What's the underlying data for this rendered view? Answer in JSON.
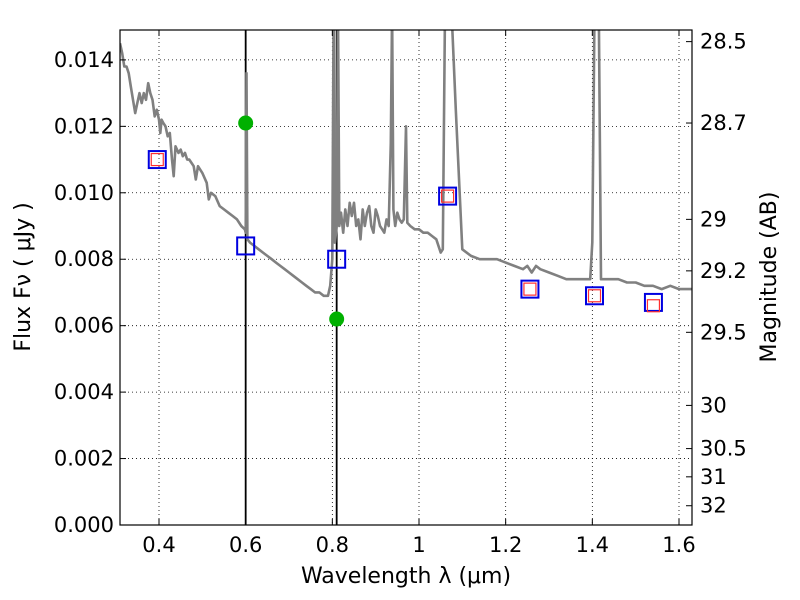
{
  "chart_data": {
    "type": "scatter",
    "xlabel": "Wavelength  λ (μm)",
    "ylabel": "Flux  Fν  ( μJy )",
    "ylabel_right": "Magnitude (AB)",
    "xlim": [
      0.31,
      1.63
    ],
    "ylim": [
      0.0,
      0.0149
    ],
    "grid": true,
    "x_ticks": [
      {
        "value": 0.4,
        "label": "0.4"
      },
      {
        "value": 0.6,
        "label": "0.6"
      },
      {
        "value": 0.8,
        "label": "0.8"
      },
      {
        "value": 1.0,
        "label": "1"
      },
      {
        "value": 1.2,
        "label": "1.2"
      },
      {
        "value": 1.4,
        "label": "1.4"
      },
      {
        "value": 1.6,
        "label": "1.6"
      }
    ],
    "y_ticks": [
      {
        "value": 0.0,
        "label": "0.000"
      },
      {
        "value": 0.002,
        "label": "0.002"
      },
      {
        "value": 0.004,
        "label": "0.004"
      },
      {
        "value": 0.006,
        "label": "0.006"
      },
      {
        "value": 0.008,
        "label": "0.008"
      },
      {
        "value": 0.01,
        "label": "0.010"
      },
      {
        "value": 0.012,
        "label": "0.012"
      },
      {
        "value": 0.014,
        "label": "0.014"
      }
    ],
    "right_ticks": [
      {
        "label": "28.5",
        "flux": 0.01455
      },
      {
        "label": "28.7",
        "flux": 0.0121
      },
      {
        "label": "29",
        "flux": 0.0092
      },
      {
        "label": "29.2",
        "flux": 0.00765
      },
      {
        "label": "29.5",
        "flux": 0.0058
      },
      {
        "label": "30",
        "flux": 0.0036
      },
      {
        "label": "30.5",
        "flux": 0.0023
      },
      {
        "label": "31",
        "flux": 0.00145
      },
      {
        "label": "32",
        "flux": 0.00058
      }
    ],
    "vertical_lines": [
      0.6,
      0.81
    ],
    "series": [
      {
        "kind": "line",
        "color": "#808080",
        "points": [
          [
            0.31,
            0.0145
          ],
          [
            0.315,
            0.0142
          ],
          [
            0.32,
            0.0138
          ],
          [
            0.325,
            0.0138
          ],
          [
            0.33,
            0.0136
          ],
          [
            0.335,
            0.0132
          ],
          [
            0.34,
            0.0128
          ],
          [
            0.345,
            0.0124
          ],
          [
            0.35,
            0.0127
          ],
          [
            0.355,
            0.013
          ],
          [
            0.36,
            0.0127
          ],
          [
            0.365,
            0.013
          ],
          [
            0.37,
            0.0128
          ],
          [
            0.375,
            0.0133
          ],
          [
            0.38,
            0.013
          ],
          [
            0.385,
            0.0128
          ],
          [
            0.39,
            0.0123
          ],
          [
            0.395,
            0.0125
          ],
          [
            0.4,
            0.0122
          ],
          [
            0.403,
            0.0118
          ],
          [
            0.406,
            0.0122
          ],
          [
            0.41,
            0.0121
          ],
          [
            0.415,
            0.012
          ],
          [
            0.42,
            0.0117
          ],
          [
            0.425,
            0.0118
          ],
          [
            0.43,
            0.011
          ],
          [
            0.434,
            0.0105
          ],
          [
            0.438,
            0.0114
          ],
          [
            0.445,
            0.0112
          ],
          [
            0.45,
            0.0113
          ],
          [
            0.455,
            0.0111
          ],
          [
            0.46,
            0.0112
          ],
          [
            0.465,
            0.011
          ],
          [
            0.47,
            0.011
          ],
          [
            0.475,
            0.0109
          ],
          [
            0.48,
            0.0108
          ],
          [
            0.485,
            0.0104
          ],
          [
            0.49,
            0.0108
          ],
          [
            0.5,
            0.0106
          ],
          [
            0.51,
            0.0103
          ],
          [
            0.515,
            0.0098
          ],
          [
            0.52,
            0.01
          ],
          [
            0.53,
            0.0099
          ],
          [
            0.54,
            0.0096
          ],
          [
            0.55,
            0.0095
          ],
          [
            0.56,
            0.0094
          ],
          [
            0.57,
            0.0093
          ],
          [
            0.58,
            0.0092
          ],
          [
            0.59,
            0.009
          ],
          [
            0.598,
            0.0089
          ],
          [
            0.6,
            0.0088
          ],
          [
            0.602,
            0.0136
          ],
          [
            0.604,
            0.0086
          ],
          [
            0.61,
            0.0085
          ],
          [
            0.62,
            0.0084
          ],
          [
            0.63,
            0.0083
          ],
          [
            0.64,
            0.0082
          ],
          [
            0.65,
            0.0081
          ],
          [
            0.66,
            0.008
          ],
          [
            0.67,
            0.0079
          ],
          [
            0.68,
            0.0078
          ],
          [
            0.69,
            0.0077
          ],
          [
            0.7,
            0.0076
          ],
          [
            0.71,
            0.0075
          ],
          [
            0.72,
            0.0074
          ],
          [
            0.73,
            0.0073
          ],
          [
            0.74,
            0.0072
          ],
          [
            0.75,
            0.0071
          ],
          [
            0.76,
            0.007
          ],
          [
            0.77,
            0.007
          ],
          [
            0.78,
            0.0069
          ],
          [
            0.79,
            0.0069
          ],
          [
            0.795,
            0.0072
          ],
          [
            0.8,
            0.008
          ],
          [
            0.803,
            0.0155
          ],
          [
            0.806,
            0.0085
          ],
          [
            0.81,
            0.009
          ],
          [
            0.813,
            0.0155
          ],
          [
            0.816,
            0.009
          ],
          [
            0.82,
            0.0094
          ],
          [
            0.825,
            0.0088
          ],
          [
            0.83,
            0.0095
          ],
          [
            0.835,
            0.009
          ],
          [
            0.84,
            0.0097
          ],
          [
            0.845,
            0.0093
          ],
          [
            0.85,
            0.0097
          ],
          [
            0.855,
            0.009
          ],
          [
            0.86,
            0.0092
          ],
          [
            0.865,
            0.0086
          ],
          [
            0.87,
            0.0095
          ],
          [
            0.875,
            0.009
          ],
          [
            0.88,
            0.0094
          ],
          [
            0.885,
            0.0096
          ],
          [
            0.89,
            0.009
          ],
          [
            0.895,
            0.0088
          ],
          [
            0.9,
            0.0095
          ],
          [
            0.905,
            0.0093
          ],
          [
            0.91,
            0.009
          ],
          [
            0.915,
            0.0089
          ],
          [
            0.92,
            0.0088
          ],
          [
            0.925,
            0.0092
          ],
          [
            0.93,
            0.009
          ],
          [
            0.935,
            0.0115
          ],
          [
            0.938,
            0.0155
          ],
          [
            0.941,
            0.0095
          ],
          [
            0.945,
            0.009
          ],
          [
            0.95,
            0.0094
          ],
          [
            0.955,
            0.0092
          ],
          [
            0.96,
            0.0091
          ],
          [
            0.965,
            0.0092
          ],
          [
            0.97,
            0.012
          ],
          [
            0.973,
            0.0091
          ],
          [
            0.98,
            0.009
          ],
          [
            0.99,
            0.0089
          ],
          [
            1.0,
            0.0089
          ],
          [
            1.01,
            0.0088
          ],
          [
            1.02,
            0.0088
          ],
          [
            1.03,
            0.0087
          ],
          [
            1.04,
            0.0086
          ],
          [
            1.05,
            0.0082
          ],
          [
            1.055,
            0.0083
          ],
          [
            1.06,
            0.0155
          ],
          [
            1.075,
            0.0155
          ],
          [
            1.085,
            0.0125
          ],
          [
            1.1,
            0.0083
          ],
          [
            1.12,
            0.0081
          ],
          [
            1.14,
            0.008
          ],
          [
            1.16,
            0.008
          ],
          [
            1.18,
            0.008
          ],
          [
            1.2,
            0.0079
          ],
          [
            1.22,
            0.0078
          ],
          [
            1.24,
            0.0077
          ],
          [
            1.25,
            0.0078
          ],
          [
            1.26,
            0.0076
          ],
          [
            1.27,
            0.0078
          ],
          [
            1.28,
            0.0077
          ],
          [
            1.3,
            0.0076
          ],
          [
            1.32,
            0.0075
          ],
          [
            1.34,
            0.0074
          ],
          [
            1.36,
            0.0074
          ],
          [
            1.38,
            0.0074
          ],
          [
            1.395,
            0.0074
          ],
          [
            1.4,
            0.0085
          ],
          [
            1.405,
            0.0155
          ],
          [
            1.415,
            0.0155
          ],
          [
            1.42,
            0.0074
          ],
          [
            1.44,
            0.0074
          ],
          [
            1.46,
            0.0074
          ],
          [
            1.48,
            0.0073
          ],
          [
            1.5,
            0.0073
          ],
          [
            1.52,
            0.0072
          ],
          [
            1.54,
            0.0072
          ],
          [
            1.56,
            0.0071
          ],
          [
            1.58,
            0.0072
          ],
          [
            1.6,
            0.0071
          ],
          [
            1.63,
            0.0071
          ]
        ]
      },
      {
        "kind": "marker",
        "marker": "circle",
        "color": "#00b000",
        "points": [
          [
            0.6,
            0.0121
          ],
          [
            0.81,
            0.0062
          ]
        ]
      },
      {
        "kind": "marker",
        "marker": "square-blue",
        "color": "#0000e0",
        "points": [
          [
            0.396,
            0.011
          ],
          [
            0.6,
            0.0084
          ],
          [
            0.81,
            0.008
          ],
          [
            1.066,
            0.0099
          ],
          [
            1.256,
            0.0071
          ],
          [
            1.405,
            0.0069
          ],
          [
            1.541,
            0.0067
          ]
        ]
      },
      {
        "kind": "marker",
        "marker": "square-red",
        "color": "#ff3030",
        "points": [
          [
            0.396,
            0.011
          ],
          [
            1.066,
            0.0099
          ],
          [
            1.256,
            0.0071
          ],
          [
            1.405,
            0.0069
          ],
          [
            1.541,
            0.0066
          ]
        ]
      }
    ]
  }
}
